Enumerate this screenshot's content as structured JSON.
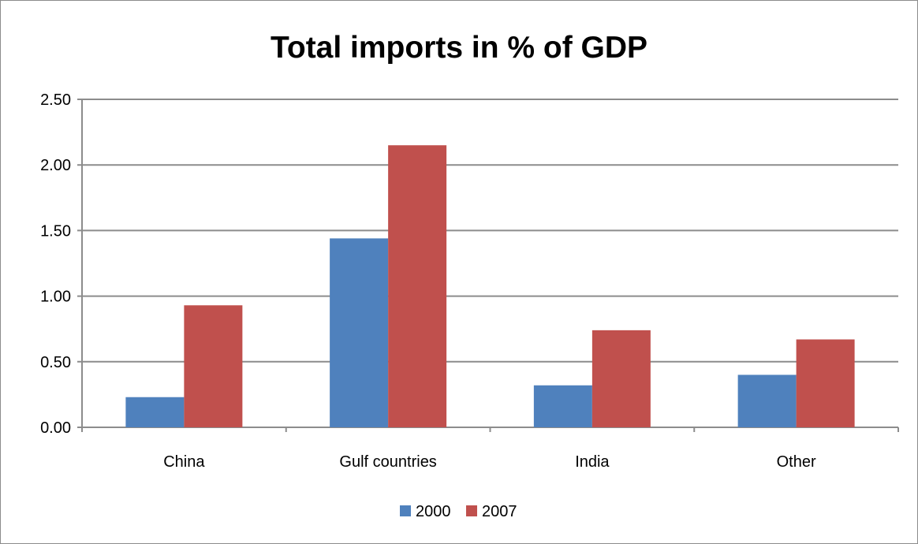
{
  "chart_data": {
    "type": "bar",
    "title": "Total imports in % of GDP",
    "xlabel": "",
    "ylabel": "",
    "categories": [
      "China",
      "Gulf countries",
      "India",
      "Other"
    ],
    "series": [
      {
        "name": "2000",
        "values": [
          0.23,
          1.44,
          0.32,
          0.4
        ],
        "color": "#4f81bd"
      },
      {
        "name": "2007",
        "values": [
          0.93,
          2.15,
          0.74,
          0.67
        ],
        "color": "#c0504d"
      }
    ],
    "ylim": [
      0,
      2.5
    ],
    "yticks": [
      "0.00",
      "0.50",
      "1.00",
      "1.50",
      "2.00",
      "2.50"
    ],
    "grid": true,
    "legend_position": "bottom",
    "colors": {
      "gridline": "#8c8c8c",
      "axis": "#8c8c8c",
      "text": "#000000"
    }
  }
}
